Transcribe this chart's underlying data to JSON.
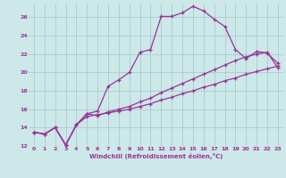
{
  "xlabel": "Windchill (Refroidissement éolien,°C)",
  "ylabel": "",
  "bg_color": "#cce8e8",
  "grid_color": "#aacccc",
  "line_color": "#993399",
  "xlim": [
    -0.5,
    23.5
  ],
  "ylim": [
    12,
    27.5
  ],
  "xticks": [
    0,
    1,
    2,
    3,
    4,
    5,
    6,
    7,
    8,
    9,
    10,
    11,
    12,
    13,
    14,
    15,
    16,
    17,
    18,
    19,
    20,
    21,
    22,
    23
  ],
  "yticks": [
    12,
    14,
    16,
    18,
    20,
    22,
    24,
    26
  ],
  "line1_x": [
    0,
    1,
    2,
    3,
    4,
    5,
    6,
    7,
    8,
    9,
    10,
    11,
    12,
    13,
    14,
    15,
    16,
    17,
    18,
    19,
    20,
    21,
    22,
    23
  ],
  "line1_y": [
    13.5,
    13.3,
    14.0,
    12.1,
    14.3,
    15.5,
    15.8,
    18.5,
    19.2,
    20.0,
    22.2,
    22.5,
    26.1,
    26.1,
    26.5,
    27.2,
    26.7,
    25.8,
    25.0,
    22.5,
    21.5,
    22.3,
    22.1,
    21.0
  ],
  "line2_x": [
    0,
    1,
    2,
    3,
    4,
    5,
    6,
    7,
    8,
    9,
    10,
    11,
    12,
    13,
    14,
    15,
    16,
    17,
    18,
    19,
    20,
    21,
    22,
    23
  ],
  "line2_y": [
    13.5,
    13.3,
    14.0,
    12.1,
    14.3,
    15.5,
    15.3,
    15.7,
    16.0,
    16.3,
    16.8,
    17.2,
    17.8,
    18.3,
    18.8,
    19.3,
    19.8,
    20.3,
    20.8,
    21.3,
    21.7,
    22.0,
    22.2,
    20.5
  ],
  "line3_x": [
    0,
    1,
    2,
    3,
    4,
    5,
    6,
    7,
    8,
    9,
    10,
    11,
    12,
    13,
    14,
    15,
    16,
    17,
    18,
    19,
    20,
    21,
    22,
    23
  ],
  "line3_y": [
    13.5,
    13.3,
    14.0,
    12.1,
    14.3,
    15.2,
    15.4,
    15.6,
    15.8,
    16.0,
    16.3,
    16.6,
    17.0,
    17.3,
    17.7,
    18.0,
    18.4,
    18.7,
    19.1,
    19.4,
    19.8,
    20.1,
    20.4,
    20.7
  ]
}
